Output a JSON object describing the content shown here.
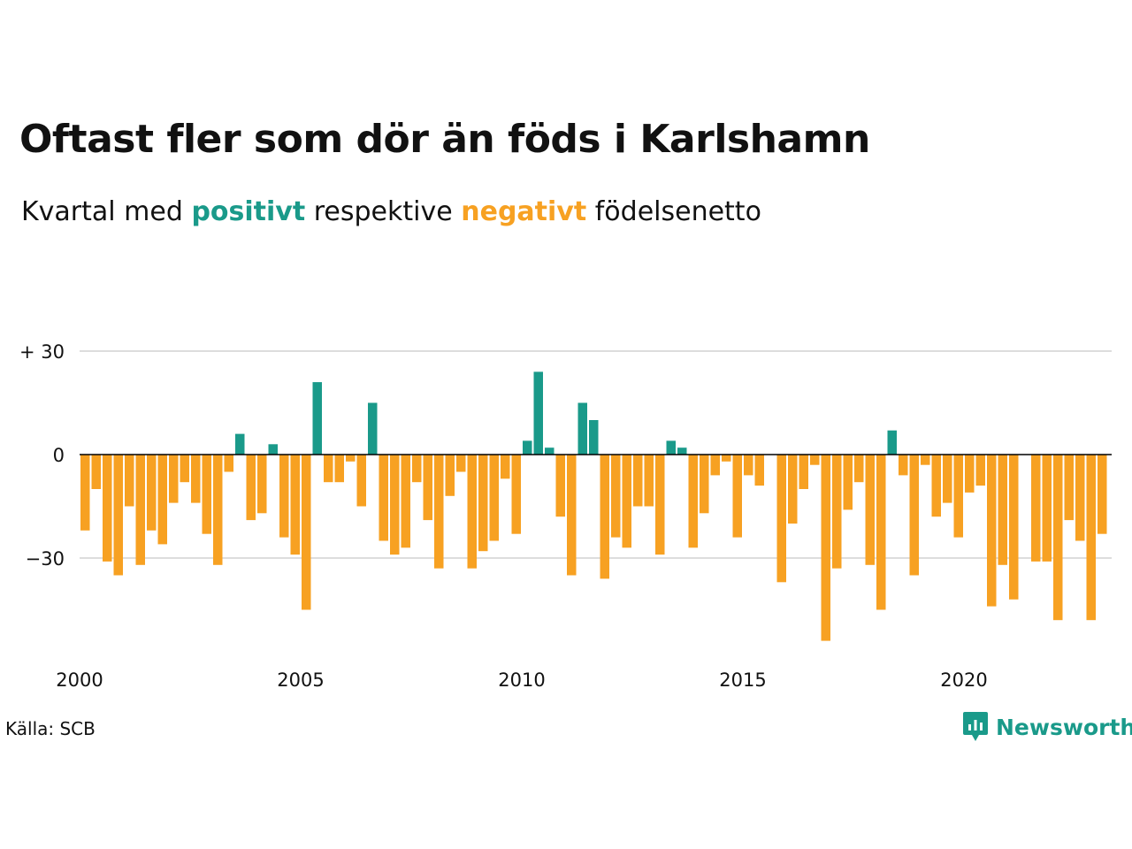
{
  "header": {
    "title": "Oftast fler som dör än föds i Karlshamn",
    "subtitle_prefix": "Kvartal med",
    "subtitle_positive": "positivt",
    "subtitle_middle": "respektive",
    "subtitle_negative": "negativt",
    "subtitle_suffix": "födelsenetto"
  },
  "footer": {
    "source": "Källa: SCB",
    "brand": "Newsworthy",
    "brand_icon": "newsworthy-logo-icon"
  },
  "colors": {
    "positive": "#1a9a8a",
    "negative": "#f7a122",
    "grid": "#dddddd",
    "baseline": "#000000"
  },
  "chart_data": {
    "type": "bar",
    "x_start": "2000 Q1",
    "x_step": "quarter",
    "ylim": [
      -55,
      32
    ],
    "yticks": [
      30,
      0,
      -30
    ],
    "ytick_labels": [
      "+ 30",
      "0",
      "−30"
    ],
    "xtick_years": [
      2000,
      2005,
      2010,
      2015,
      2020
    ],
    "xtick_labels": [
      "2000",
      "2005",
      "2010",
      "2015",
      "2020"
    ],
    "grid": true,
    "legend": "none",
    "values": [
      -22,
      -10,
      -31,
      -35,
      -15,
      -32,
      -22,
      -26,
      -14,
      -8,
      -14,
      -23,
      -32,
      -5,
      6,
      -19,
      -17,
      3,
      -24,
      -29,
      -45,
      21,
      -8,
      -8,
      -2,
      -15,
      15,
      -25,
      -29,
      -27,
      -8,
      -19,
      -33,
      -12,
      -5,
      -33,
      -28,
      -25,
      -7,
      -23,
      4,
      24,
      2,
      -18,
      -35,
      15,
      10,
      -36,
      -24,
      -27,
      -15,
      -15,
      -29,
      4,
      2,
      -27,
      -17,
      -6,
      -2,
      -24,
      -6,
      -9,
      0,
      -37,
      -20,
      -10,
      -3,
      -54,
      -33,
      -16,
      -8,
      -32,
      -45,
      7,
      -6,
      -35,
      -3,
      -18,
      -14,
      -24,
      -11,
      -9,
      -44,
      -32,
      -42,
      0,
      -31,
      -31,
      -48,
      -19,
      -25,
      -48,
      -23
    ]
  }
}
